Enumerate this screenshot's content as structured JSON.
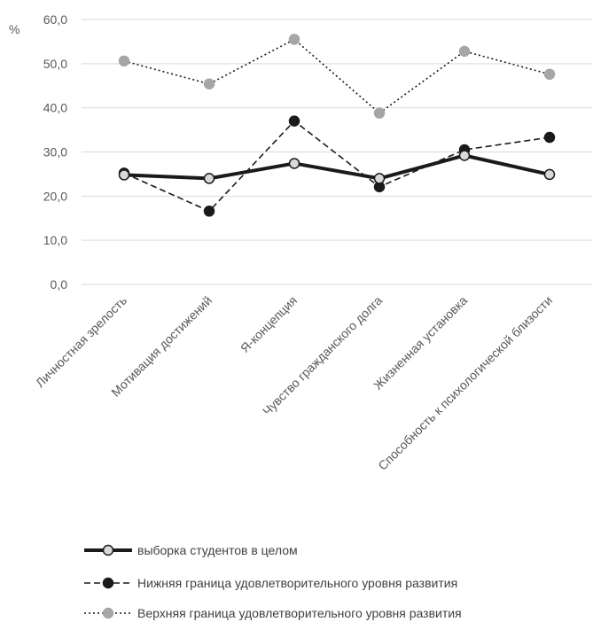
{
  "chart_data": {
    "type": "line",
    "unit_label": "%",
    "categories": [
      "Личностная зрелость",
      "Мотивация достижений",
      "Я-концепция",
      "Чувство гражданского долга",
      "Жизненная установка",
      "Способность к психологической близости"
    ],
    "ylim": [
      0,
      60
    ],
    "yticks": [
      "0,0",
      "10,0",
      "20,0",
      "30,0",
      "40,0",
      "50,0",
      "60,0"
    ],
    "grid": true,
    "legend_position": "bottom",
    "series": [
      {
        "name": "выборка студентов  в целом",
        "values": [
          24.8,
          24.0,
          27.4,
          24.0,
          29.2,
          24.9
        ],
        "line_color": "#1a1a1a",
        "line_style": "solid",
        "marker_fill": "#d9d9d9",
        "marker_stroke": "#1a1a1a"
      },
      {
        "name": "Нижняя граница удовлетворительного уровня развития",
        "values": [
          25.2,
          16.6,
          37.0,
          22.1,
          30.5,
          33.3
        ],
        "line_color": "#1a1a1a",
        "line_style": "dashed",
        "marker_fill": "#1a1a1a",
        "marker_stroke": "#1a1a1a"
      },
      {
        "name": "Верхняя граница удовлетворительного уровня развития",
        "values": [
          50.6,
          45.4,
          55.5,
          38.8,
          52.8,
          47.6
        ],
        "line_color": "#1a1a1a",
        "line_style": "dotted",
        "marker_fill": "#a6a6a6",
        "marker_stroke": "#a6a6a6"
      }
    ]
  }
}
